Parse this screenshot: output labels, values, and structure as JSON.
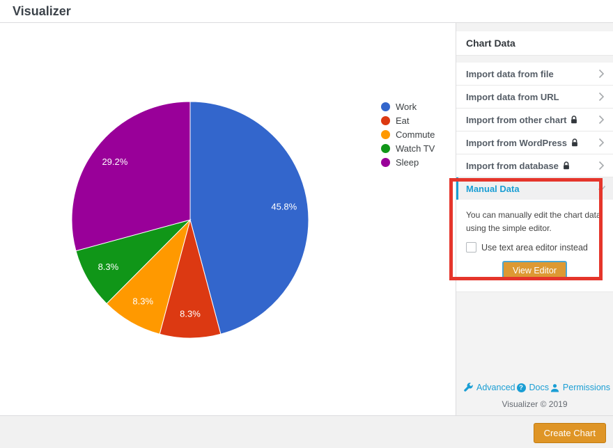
{
  "header": {
    "title": "Visualizer"
  },
  "sidebar": {
    "section_title": "Chart Data",
    "import_items": [
      {
        "label": "Import data from file",
        "locked": false
      },
      {
        "label": "Import data from URL",
        "locked": false
      },
      {
        "label": "Import from other chart",
        "locked": true
      },
      {
        "label": "Import from WordPress",
        "locked": true
      },
      {
        "label": "Import from database",
        "locked": true
      }
    ],
    "manual": {
      "title": "Manual Data",
      "description": "You can manually edit the chart data using the simple editor.",
      "checkbox_label": "Use text area editor instead",
      "checkbox_checked": false,
      "button_label": "View Editor"
    },
    "footer_links": [
      {
        "label": "Advanced",
        "icon": "wrench-icon"
      },
      {
        "label": "Docs",
        "icon": "help-icon"
      },
      {
        "label": "Permissions",
        "icon": "user-icon"
      }
    ],
    "copyright": "Visualizer © 2019"
  },
  "footer": {
    "create_button_label": "Create Chart"
  },
  "chart_data": {
    "type": "pie",
    "labels": [
      "Work",
      "Eat",
      "Commute",
      "Watch TV",
      "Sleep"
    ],
    "values": [
      45.8,
      8.3,
      8.3,
      8.3,
      29.2
    ],
    "slice_labels": [
      "45.8%",
      "8.3%",
      "8.3%",
      "8.3%",
      "29.2%"
    ],
    "colors": [
      "#3366cc",
      "#dc3912",
      "#ff9900",
      "#109618",
      "#990099"
    ],
    "legend_position": "right",
    "start_angle": "12-oclock",
    "direction": "clockwise",
    "title": "",
    "grid": false
  },
  "ui_colors": {
    "accent_blue": "#1a9ed4",
    "button_orange": "#dd9933",
    "create_button_orange": "#df9526",
    "annotation_red": "#e5352b",
    "sidebar_bg": "#f3f3f3"
  }
}
